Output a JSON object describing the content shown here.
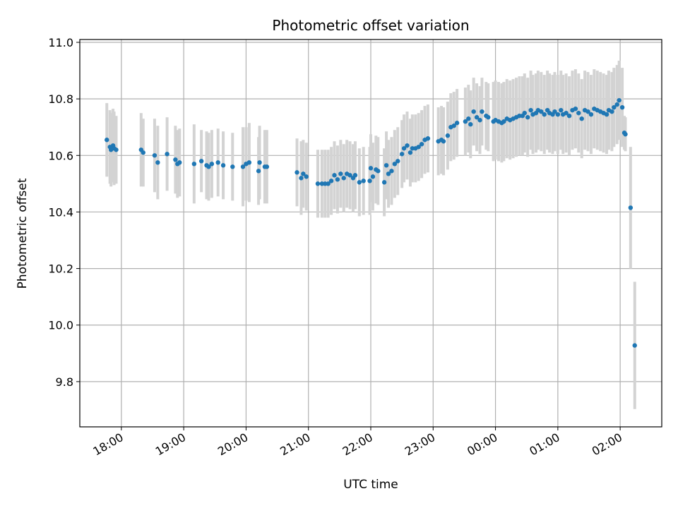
{
  "chart_data": {
    "type": "scatter",
    "title": "Photometric offset variation",
    "xlabel": "UTC time",
    "ylabel": "Photometric offset",
    "x_unit": "UTC",
    "xlim": [
      "17:20",
      "02:40"
    ],
    "ylim": [
      9.64,
      11.01
    ],
    "x_ticks": [
      "18:00",
      "19:00",
      "20:00",
      "21:00",
      "22:00",
      "23:00",
      "00:00",
      "01:00",
      "02:00"
    ],
    "y_ticks": [
      "9.8",
      "10.0",
      "10.2",
      "10.4",
      "10.6",
      "10.8",
      "11.0"
    ],
    "y_tick_values": [
      9.8,
      10.0,
      10.2,
      10.4,
      10.6,
      10.8,
      11.0
    ],
    "grid": true,
    "colors": {
      "marker": "#1f77b4",
      "errorbar": "#d3d3d3",
      "grid": "#b0b0b0"
    },
    "series": [
      {
        "points": [
          [
            "17:46",
            10.655,
            0.13
          ],
          [
            "17:49",
            10.63,
            0.13
          ],
          [
            "17:50",
            10.62,
            0.13
          ],
          [
            "17:52",
            10.635,
            0.13
          ],
          [
            "17:53",
            10.625,
            0.13
          ],
          [
            "17:55",
            10.62,
            0.12
          ],
          [
            "18:19",
            10.62,
            0.13
          ],
          [
            "18:21",
            10.61,
            0.12
          ],
          [
            "18:32",
            10.6,
            0.13
          ],
          [
            "18:35",
            10.575,
            0.13
          ],
          [
            "18:44",
            10.605,
            0.13
          ],
          [
            "18:52",
            10.585,
            0.12
          ],
          [
            "18:54",
            10.57,
            0.12
          ],
          [
            "18:56",
            10.575,
            0.12
          ],
          [
            "19:10",
            10.57,
            0.14
          ],
          [
            "19:17",
            10.58,
            0.11
          ],
          [
            "19:22",
            10.565,
            0.12
          ],
          [
            "19:24",
            10.56,
            0.12
          ],
          [
            "19:27",
            10.57,
            0.12
          ],
          [
            "19:33",
            10.575,
            0.12
          ],
          [
            "19:38",
            10.565,
            0.12
          ],
          [
            "19:47",
            10.56,
            0.12
          ],
          [
            "19:57",
            10.56,
            0.14
          ],
          [
            "20:00",
            10.57,
            0.13
          ],
          [
            "20:03",
            10.575,
            0.14
          ],
          [
            "20:12",
            10.545,
            0.12
          ],
          [
            "20:13",
            10.575,
            0.13
          ],
          [
            "20:18",
            10.56,
            0.13
          ],
          [
            "20:20",
            10.56,
            0.13
          ],
          [
            "20:49",
            10.54,
            0.12
          ],
          [
            "20:53",
            10.52,
            0.13
          ],
          [
            "20:55",
            10.535,
            0.12
          ],
          [
            "20:58",
            10.525,
            0.12
          ],
          [
            "21:09",
            10.5,
            0.12
          ],
          [
            "21:13",
            10.5,
            0.12
          ],
          [
            "21:16",
            10.5,
            0.12
          ],
          [
            "21:19",
            10.5,
            0.12
          ],
          [
            "21:22",
            10.51,
            0.12
          ],
          [
            "21:25",
            10.53,
            0.12
          ],
          [
            "21:28",
            10.515,
            0.12
          ],
          [
            "21:31",
            10.535,
            0.12
          ],
          [
            "21:34",
            10.52,
            0.12
          ],
          [
            "21:37",
            10.535,
            0.12
          ],
          [
            "21:40",
            10.53,
            0.12
          ],
          [
            "21:43",
            10.52,
            0.12
          ],
          [
            "21:45",
            10.53,
            0.12
          ],
          [
            "21:49",
            10.505,
            0.12
          ],
          [
            "21:53",
            10.51,
            0.12
          ],
          [
            "21:59",
            10.51,
            0.12
          ],
          [
            "22:00",
            10.555,
            0.12
          ],
          [
            "22:02",
            10.525,
            0.12
          ],
          [
            "22:05",
            10.55,
            0.12
          ],
          [
            "22:07",
            10.545,
            0.12
          ],
          [
            "22:13",
            10.505,
            0.12
          ],
          [
            "22:15",
            10.565,
            0.12
          ],
          [
            "22:17",
            10.535,
            0.12
          ],
          [
            "22:20",
            10.545,
            0.12
          ],
          [
            "22:23",
            10.57,
            0.12
          ],
          [
            "22:26",
            10.58,
            0.12
          ],
          [
            "22:30",
            10.605,
            0.12
          ],
          [
            "22:32",
            10.625,
            0.12
          ],
          [
            "22:35",
            10.635,
            0.12
          ],
          [
            "22:38",
            10.61,
            0.12
          ],
          [
            "22:40",
            10.625,
            0.12
          ],
          [
            "22:43",
            10.625,
            0.12
          ],
          [
            "22:46",
            10.63,
            0.12
          ],
          [
            "22:49",
            10.64,
            0.12
          ],
          [
            "22:52",
            10.655,
            0.12
          ],
          [
            "22:55",
            10.66,
            0.12
          ],
          [
            "23:05",
            10.65,
            0.12
          ],
          [
            "23:08",
            10.655,
            0.12
          ],
          [
            "23:10",
            10.65,
            0.12
          ],
          [
            "23:14",
            10.67,
            0.12
          ],
          [
            "23:17",
            10.7,
            0.12
          ],
          [
            "23:20",
            10.705,
            0.12
          ],
          [
            "23:23",
            10.715,
            0.12
          ],
          [
            "23:31",
            10.72,
            0.12
          ],
          [
            "23:34",
            10.73,
            0.12
          ],
          [
            "23:36",
            10.71,
            0.12
          ],
          [
            "23:39",
            10.755,
            0.12
          ],
          [
            "23:42",
            10.735,
            0.12
          ],
          [
            "23:45",
            10.725,
            0.12
          ],
          [
            "23:47",
            10.755,
            0.12
          ],
          [
            "23:51",
            10.74,
            0.12
          ],
          [
            "23:53",
            10.735,
            0.12
          ],
          [
            "23:58",
            10.72,
            0.14
          ],
          [
            "00:00",
            10.725,
            0.14
          ],
          [
            "00:03",
            10.72,
            0.14
          ],
          [
            "00:06",
            10.715,
            0.14
          ],
          [
            "00:08",
            10.72,
            0.14
          ],
          [
            "00:11",
            10.73,
            0.14
          ],
          [
            "00:14",
            10.725,
            0.14
          ],
          [
            "00:17",
            10.73,
            0.14
          ],
          [
            "00:20",
            10.735,
            0.14
          ],
          [
            "00:23",
            10.74,
            0.14
          ],
          [
            "00:26",
            10.74,
            0.14
          ],
          [
            "00:28",
            10.75,
            0.14
          ],
          [
            "00:31",
            10.735,
            0.14
          ],
          [
            "00:34",
            10.76,
            0.14
          ],
          [
            "00:36",
            10.745,
            0.14
          ],
          [
            "00:39",
            10.75,
            0.14
          ],
          [
            "00:41",
            10.76,
            0.14
          ],
          [
            "00:44",
            10.755,
            0.14
          ],
          [
            "00:47",
            10.745,
            0.14
          ],
          [
            "00:50",
            10.76,
            0.14
          ],
          [
            "00:52",
            10.75,
            0.14
          ],
          [
            "00:55",
            10.745,
            0.14
          ],
          [
            "00:57",
            10.755,
            0.14
          ],
          [
            "01:00",
            10.745,
            0.14
          ],
          [
            "01:03",
            10.76,
            0.14
          ],
          [
            "01:05",
            10.745,
            0.14
          ],
          [
            "01:08",
            10.75,
            0.14
          ],
          [
            "01:11",
            10.74,
            0.14
          ],
          [
            "01:14",
            10.76,
            0.14
          ],
          [
            "01:17",
            10.765,
            0.14
          ],
          [
            "01:20",
            10.75,
            0.14
          ],
          [
            "01:23",
            10.73,
            0.14
          ],
          [
            "01:26",
            10.76,
            0.14
          ],
          [
            "01:29",
            10.755,
            0.14
          ],
          [
            "01:32",
            10.745,
            0.14
          ],
          [
            "01:35",
            10.765,
            0.14
          ],
          [
            "01:38",
            10.76,
            0.14
          ],
          [
            "01:41",
            10.755,
            0.14
          ],
          [
            "01:44",
            10.75,
            0.14
          ],
          [
            "01:47",
            10.745,
            0.14
          ],
          [
            "01:49",
            10.76,
            0.14
          ],
          [
            "01:52",
            10.755,
            0.14
          ],
          [
            "01:54",
            10.77,
            0.14
          ],
          [
            "01:57",
            10.78,
            0.14
          ],
          [
            "01:59",
            10.795,
            0.14
          ],
          [
            "02:02",
            10.77,
            0.14
          ],
          [
            "02:04",
            10.68,
            0.06
          ],
          [
            "02:05",
            10.675,
            0.06
          ],
          [
            "02:10",
            10.415,
            0.215
          ],
          [
            "02:14",
            9.928,
            0.225
          ]
        ]
      }
    ]
  }
}
